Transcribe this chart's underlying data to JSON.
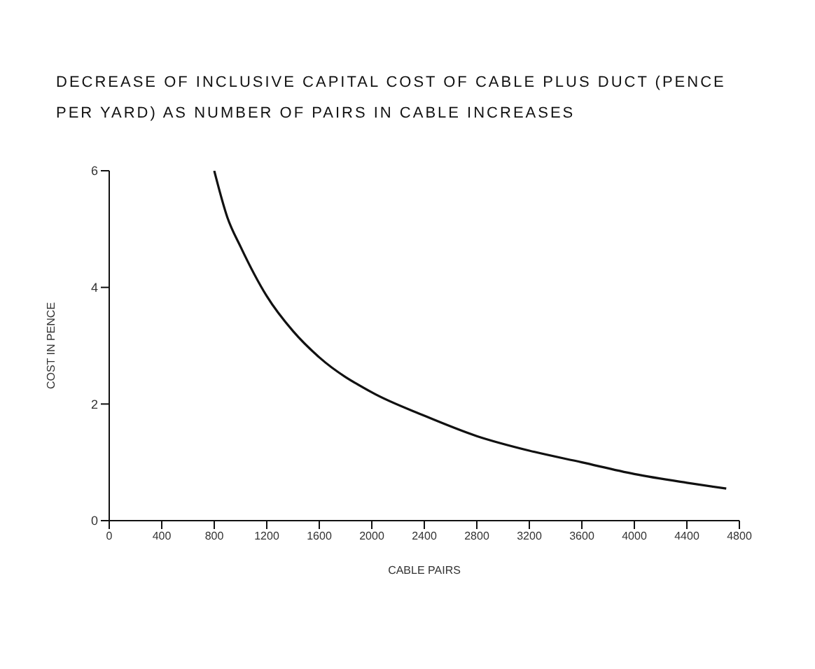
{
  "chart_data": {
    "type": "line",
    "title": "DECREASE OF INCLUSIVE CAPITAL COST OF CABLE PLUS DUCT (PENCE PER YARD) AS NUMBER OF PAIRS IN CABLE INCREASES",
    "xlabel": "CABLE PAIRS",
    "ylabel": "COST IN PENCE",
    "x": [
      800,
      900,
      1000,
      1200,
      1400,
      1600,
      2000,
      2400,
      2800,
      3200,
      3600,
      4000,
      4400,
      4700
    ],
    "series": [
      {
        "color": "#111111",
        "values": [
          6.0,
          5.2,
          4.7,
          3.85,
          3.25,
          2.8,
          2.2,
          1.8,
          1.45,
          1.2,
          1.0,
          0.8,
          0.65,
          0.55
        ]
      }
    ],
    "xlim": [
      0,
      4800
    ],
    "xticks": [
      0,
      400,
      800,
      1200,
      1600,
      2000,
      2400,
      2800,
      3200,
      3600,
      4000,
      4400,
      4800
    ],
    "ylim": [
      0,
      6
    ],
    "yticks": [
      0,
      2,
      4,
      6
    ],
    "grid": false,
    "legend": false,
    "marker": "none",
    "line_style": "solid"
  }
}
